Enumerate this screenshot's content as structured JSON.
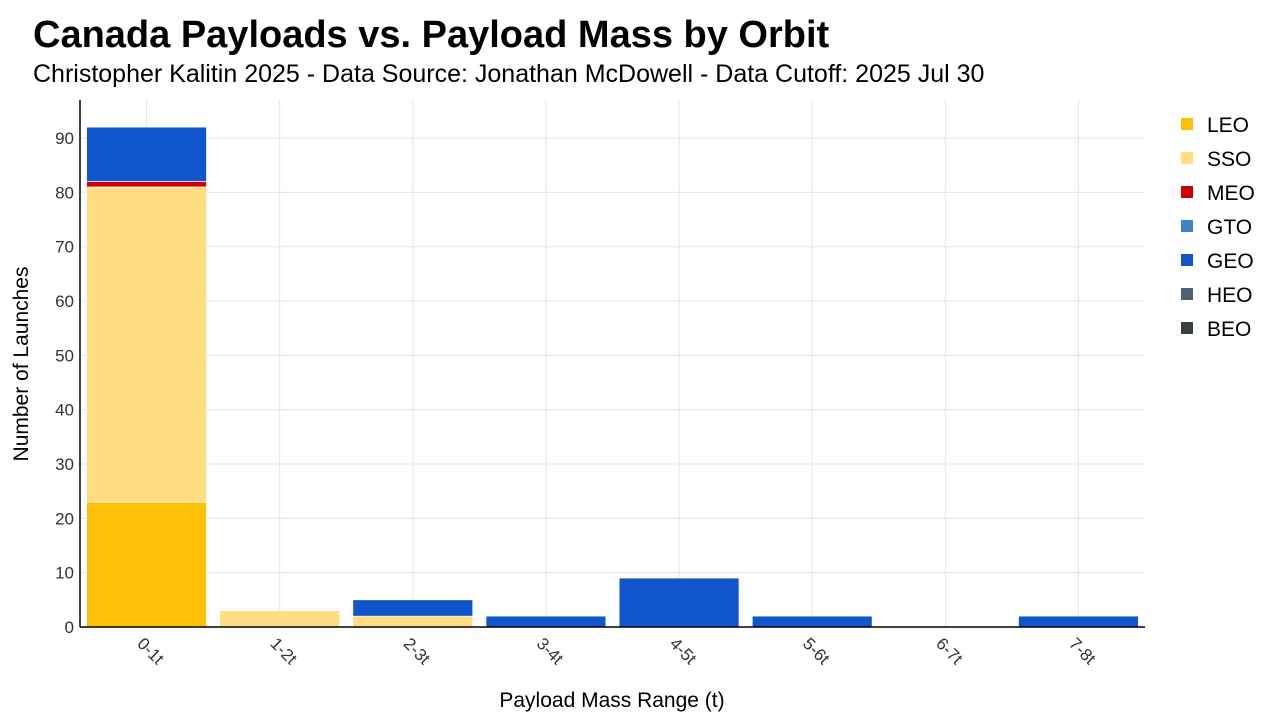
{
  "chart_data": {
    "type": "bar",
    "stacked": true,
    "title": "Canada Payloads vs. Payload Mass by Orbit",
    "subtitle": "Christopher Kalitin 2025 - Data Source: Jonathan McDowell - Data Cutoff: 2025 Jul 30",
    "xlabel": "Payload Mass Range (t)",
    "ylabel": "Number of Launches",
    "ylim": [
      0,
      97
    ],
    "yticks": [
      0,
      10,
      20,
      30,
      40,
      50,
      60,
      70,
      80,
      90
    ],
    "grid": true,
    "legend_position": "right",
    "categories": [
      "0-1t",
      "1-2t",
      "2-3t",
      "3-4t",
      "4-5t",
      "5-6t",
      "6-7t",
      "7-8t"
    ],
    "series": [
      {
        "name": "LEO",
        "color": "#FFC107",
        "values": [
          23,
          0,
          0,
          0,
          0,
          0,
          0,
          0
        ]
      },
      {
        "name": "SSO",
        "color": "#FFDD80",
        "values": [
          58,
          3,
          2,
          0,
          0,
          0,
          0,
          0
        ]
      },
      {
        "name": "MEO",
        "color": "#CC0000",
        "values": [
          1,
          0,
          0,
          0,
          0,
          0,
          0,
          0
        ]
      },
      {
        "name": "GTO",
        "color": "#3D85C6",
        "values": [
          0,
          0,
          0,
          0,
          0,
          0,
          0,
          0
        ]
      },
      {
        "name": "GEO",
        "color": "#1155CC",
        "values": [
          10,
          0,
          3,
          2,
          9,
          2,
          0,
          2
        ]
      },
      {
        "name": "HEO",
        "color": "#4F5F73",
        "values": [
          0,
          0,
          0,
          0,
          0,
          0,
          0,
          0
        ]
      },
      {
        "name": "BEO",
        "color": "#3A3F44",
        "values": [
          0,
          0,
          0,
          0,
          0,
          0,
          0,
          0
        ]
      }
    ]
  }
}
